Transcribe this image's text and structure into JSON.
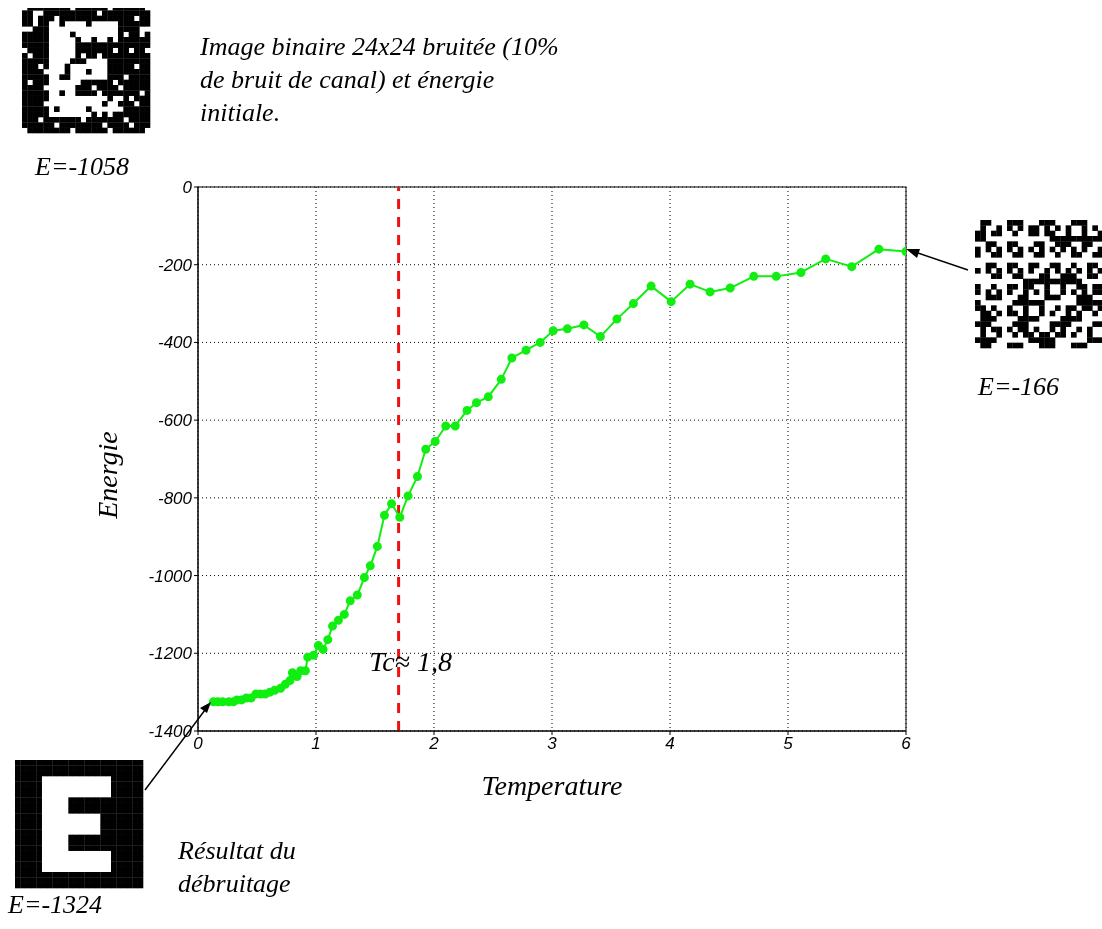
{
  "chart_data": {
    "type": "line",
    "xlabel": "Temperature",
    "ylabel": "Energie",
    "x": [
      0.13,
      0.17,
      0.21,
      0.26,
      0.3,
      0.33,
      0.37,
      0.41,
      0.45,
      0.49,
      0.53,
      0.57,
      0.61,
      0.65,
      0.7,
      0.74,
      0.78,
      0.8,
      0.84,
      0.87,
      0.91,
      0.93,
      0.98,
      1.02,
      1.06,
      1.1,
      1.14,
      1.19,
      1.24,
      1.29,
      1.35,
      1.41,
      1.46,
      1.52,
      1.58,
      1.64,
      1.71,
      1.78,
      1.86,
      1.93,
      2.01,
      2.1,
      2.18,
      2.28,
      2.36,
      2.46,
      2.57,
      2.66,
      2.78,
      2.9,
      3.01,
      3.13,
      3.27,
      3.41,
      3.55,
      3.69,
      3.84,
      4.01,
      4.17,
      4.34,
      4.51,
      4.71,
      4.9,
      5.11,
      5.32,
      5.54,
      5.77,
      6.0
    ],
    "series": [
      {
        "color": "#11ee11",
        "values": [
          -1325,
          -1325,
          -1325,
          -1325,
          -1325,
          -1320,
          -1320,
          -1315,
          -1315,
          -1305,
          -1305,
          -1305,
          -1300,
          -1295,
          -1290,
          -1280,
          -1270,
          -1250,
          -1260,
          -1245,
          -1245,
          -1210,
          -1205,
          -1180,
          -1190,
          -1165,
          -1130,
          -1115,
          -1100,
          -1065,
          -1050,
          -1005,
          -975,
          -925,
          -845,
          -815,
          -850,
          -795,
          -745,
          -675,
          -655,
          -615,
          -615,
          -575,
          -555,
          -540,
          -495,
          -440,
          -420,
          -400,
          -370,
          -365,
          -355,
          -385,
          -340,
          -300,
          -255,
          -295,
          -250,
          -270,
          -260,
          -230,
          -230,
          -220,
          -185,
          -205,
          -160,
          -166
        ]
      }
    ],
    "xlim": [
      0,
      6
    ],
    "xticks": [
      0,
      1,
      2,
      3,
      4,
      5,
      6
    ],
    "ylim": [
      -1400,
      0
    ],
    "yticks": [
      -1400,
      -1200,
      -1000,
      -800,
      -600,
      -400,
      -200,
      0
    ],
    "grid": true,
    "marker": "circle",
    "line_style": "solid",
    "ref_lines": [
      {
        "axis": "x",
        "value": 1.7,
        "label": "Tc≈ 1,8",
        "color": "#ee1111",
        "line_style": "dashed"
      }
    ],
    "annotations": [
      "Image binaire 24x24 bruitée (10% de bruit de canal) et énergie initiale.",
      "E=-1058",
      "E=-166",
      "Résultat du débruitage",
      "E=-1324"
    ]
  }
}
